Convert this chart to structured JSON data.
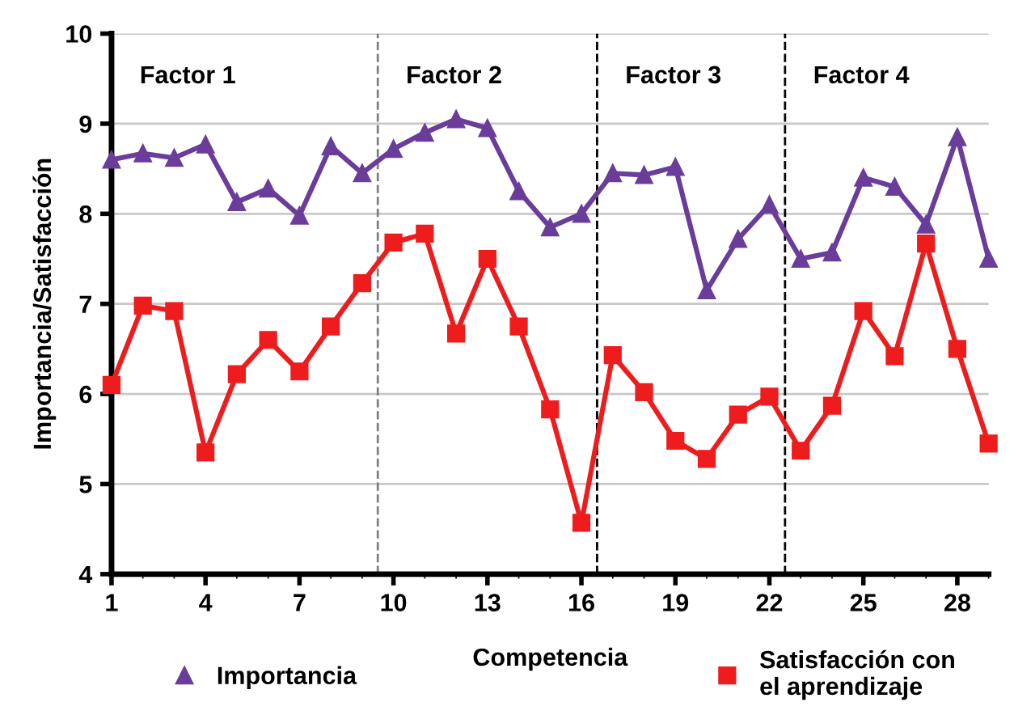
{
  "chart_data": {
    "type": "line",
    "xlabel": "Competencia",
    "ylabel": "Importancia/Satisfacción",
    "x": [
      1,
      2,
      3,
      4,
      5,
      6,
      7,
      8,
      9,
      10,
      11,
      12,
      13,
      14,
      15,
      16,
      17,
      18,
      19,
      20,
      21,
      22,
      23,
      24,
      25,
      26,
      27,
      28,
      29
    ],
    "series": [
      {
        "name": "Importancia",
        "color": "#6a3d9a",
        "marker": "triangle",
        "values": [
          8.6,
          8.67,
          8.62,
          8.77,
          8.13,
          8.28,
          7.98,
          8.75,
          8.45,
          8.72,
          8.9,
          9.05,
          8.95,
          8.25,
          7.85,
          8.0,
          8.45,
          8.43,
          8.52,
          7.15,
          7.72,
          8.1,
          7.5,
          7.57,
          8.4,
          8.3,
          7.88,
          8.85,
          7.5
        ]
      },
      {
        "name": "Satisfacción con\nel aprendizaje",
        "color": "#ee1c1c",
        "marker": "square",
        "values": [
          6.1,
          6.98,
          6.92,
          5.35,
          6.22,
          6.6,
          6.25,
          6.75,
          7.23,
          7.68,
          7.78,
          6.67,
          7.5,
          6.75,
          5.83,
          4.57,
          6.43,
          6.02,
          5.48,
          5.28,
          5.77,
          5.97,
          5.37,
          5.87,
          6.92,
          6.42,
          7.67,
          6.5,
          5.45
        ]
      }
    ],
    "xlim": [
      1,
      29
    ],
    "xticks": [
      1,
      4,
      7,
      10,
      13,
      16,
      19,
      22,
      25,
      28
    ],
    "ylim": [
      4,
      10
    ],
    "yticks": [
      4,
      5,
      6,
      7,
      8,
      9,
      10
    ],
    "grid": "y",
    "legend": "bottom",
    "line_style": "solid",
    "ref_lines": [
      {
        "axis": "x",
        "value": 9.5,
        "color": "#808080",
        "line_style": "dashed"
      },
      {
        "axis": "x",
        "value": 16.5,
        "color": "#000000",
        "line_style": "dashed"
      },
      {
        "axis": "x",
        "value": 22.5,
        "color": "#000000",
        "line_style": "dashed"
      }
    ],
    "annotations": [
      "Factor 1",
      "Factor 2",
      "Factor 3",
      "Factor 4"
    ]
  }
}
